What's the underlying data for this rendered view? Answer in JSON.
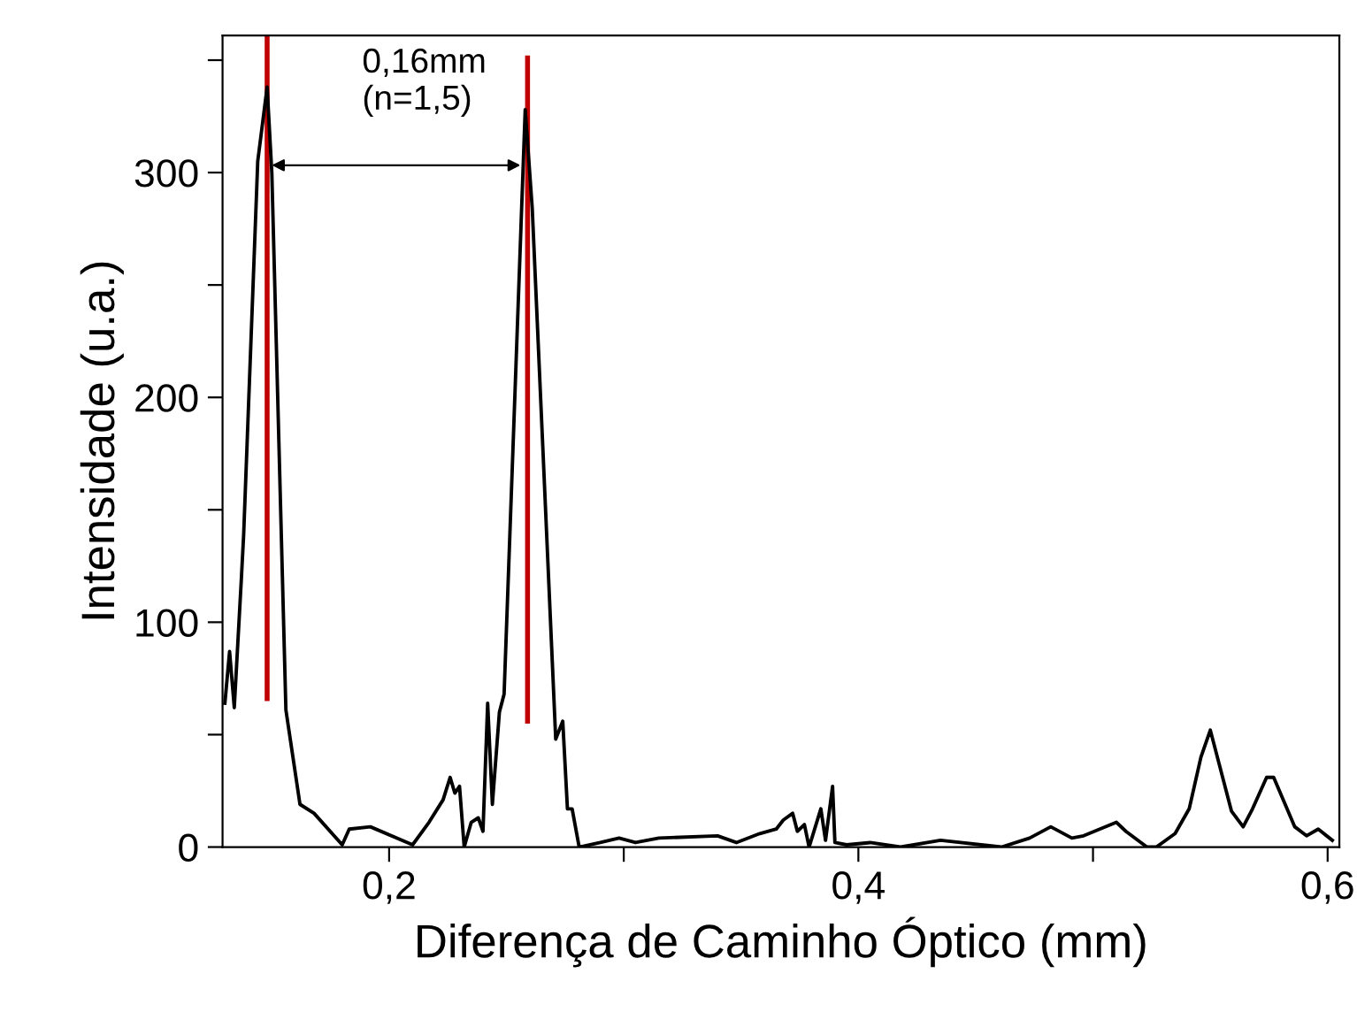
{
  "chart_data": {
    "type": "line",
    "xlabel": "Diferença de Caminho Óptico (mm)",
    "ylabel": "Intensidade (u.a.)",
    "annotations": [
      "0,16mm\n(n=1,5)"
    ],
    "series": [
      {
        "color": "#000000",
        "x": [
          0.13,
          0.132,
          0.134,
          0.137,
          0.138,
          0.144,
          0.148,
          0.15,
          0.156,
          0.162,
          0.168,
          0.18,
          0.183,
          0.192,
          0.21,
          0.217,
          0.223,
          0.226,
          0.228,
          0.23,
          0.232,
          0.235,
          0.238,
          0.24,
          0.242,
          0.244,
          0.247,
          0.249,
          0.258,
          0.261,
          0.271,
          0.274,
          0.276,
          0.278,
          0.281,
          0.29,
          0.298,
          0.305,
          0.315,
          0.34,
          0.348,
          0.358,
          0.365,
          0.368,
          0.372,
          0.374,
          0.377,
          0.379,
          0.384,
          0.386,
          0.389,
          0.39,
          0.395,
          0.405,
          0.418,
          0.435,
          0.461,
          0.473,
          0.482,
          0.491,
          0.496,
          0.51,
          0.514,
          0.523,
          0.527,
          0.535,
          0.541,
          0.546,
          0.55,
          0.559,
          0.564,
          0.568,
          0.574,
          0.577,
          0.586,
          0.591,
          0.596,
          0.602
        ],
        "values": [
          64,
          87,
          62,
          119,
          139,
          305,
          338,
          300,
          61,
          19,
          15,
          1,
          8,
          9,
          1,
          11,
          21,
          31,
          24,
          27,
          0,
          11,
          13,
          7,
          64,
          19,
          60,
          68,
          328,
          284,
          48,
          56,
          17,
          17,
          0,
          2,
          4,
          2,
          4,
          5,
          2,
          6,
          8,
          12,
          15,
          7,
          10,
          0,
          17,
          3,
          27,
          2,
          1,
          2,
          0,
          3,
          0,
          4,
          9,
          4,
          5,
          11,
          7,
          0,
          0,
          6,
          17,
          40,
          52,
          16,
          9,
          17,
          31,
          31,
          9,
          5,
          8,
          3
        ]
      },
      {
        "color": "#c00000",
        "x": [
          0.148,
          0.148
        ],
        "values": [
          66,
          360
        ]
      },
      {
        "color": "#c00000",
        "x": [
          0.259,
          0.259
        ],
        "values": [
          56,
          351
        ]
      }
    ],
    "xlim": [
      0.129,
      0.605
    ],
    "ylim": [
      0,
      361
    ],
    "xticks": [
      {
        "value": 0.2,
        "label": "0,2"
      },
      {
        "value": 0.3,
        "label": null
      },
      {
        "value": 0.4,
        "label": "0,4"
      },
      {
        "value": 0.5,
        "label": null
      },
      {
        "value": 0.6,
        "label": "0,6"
      }
    ],
    "yticks": [
      0,
      {
        "value": 50,
        "label": null
      },
      100,
      {
        "value": 150,
        "label": null
      },
      200,
      {
        "value": 250,
        "label": null
      },
      300,
      {
        "value": 350,
        "label": null
      }
    ],
    "grid": false,
    "legend": false,
    "marker": "none",
    "line_style": "solid"
  }
}
